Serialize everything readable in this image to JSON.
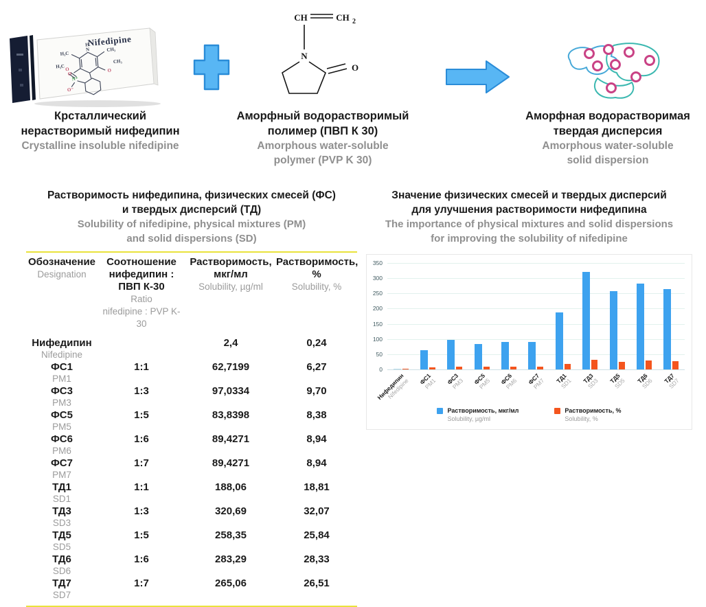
{
  "scheme": {
    "left": {
      "package_label": "Nifedipine",
      "caption_ru": [
        "Крсталлический",
        "нерастворимый нифедипин"
      ],
      "caption_en": [
        "Crystalline insoluble nifedipine"
      ],
      "structure_atoms": {
        "h": "H",
        "n": "N",
        "h3c": "H₃C",
        "ch3": "CH₃",
        "o": "O",
        "n_plus": "N⁺",
        "o_minus": "O⁻"
      }
    },
    "plus_icon": "plus",
    "arrow_icon": "right-arrow",
    "middle": {
      "caption_ru": [
        "Аморфный водорастворимый",
        "полимер (ПВП К 30)"
      ],
      "caption_en": [
        "Amorphous water-soluble",
        "polymer (PVP K 30)"
      ],
      "structure_atoms": {
        "ch": "CH",
        "ch2": "CH",
        "ch2_sub": "2",
        "n": "N",
        "o": "O"
      }
    },
    "right": {
      "caption_ru": [
        "Аморфная водорастворимая",
        "твердая дисперсия"
      ],
      "caption_en": [
        "Amorphous water-soluble",
        "solid dispersion"
      ]
    }
  },
  "table": {
    "title_ru": [
      "Растворимость нифедипина, физических смесей (ФС)",
      "и твердых дисперсий (ТД)"
    ],
    "title_en": [
      "Solubility of nifedipine, physical mixtures (PM)",
      "and solid dispersions (SD)"
    ],
    "headers": {
      "designation": {
        "ru": "Обозначение",
        "en": "Designation"
      },
      "ratio": {
        "ru1": "Соотношение",
        "ru2": "нифедипин : ПВП К-30",
        "en1": "Ratio",
        "en2": "nifedipine : PVP K-30"
      },
      "solubility": {
        "ru1": "Растворимость,",
        "ru2": "мкг/мл",
        "en": "Solubility, µg/ml"
      },
      "solubility_pct": {
        "ru": "Растворимость, %",
        "en": "Solubility, %"
      }
    },
    "rows": [
      {
        "ru": "Нифедипин",
        "en": "Nifedipine",
        "ratio": "",
        "sol": "2,4",
        "pct": "0,24"
      },
      {
        "ru": "ФС1",
        "en": "PM1",
        "ratio": "1:1",
        "sol": "62,7199",
        "pct": "6,27"
      },
      {
        "ru": "ФС3",
        "en": "PM3",
        "ratio": "1:3",
        "sol": "97,0334",
        "pct": "9,70"
      },
      {
        "ru": "ФС5",
        "en": "PM5",
        "ratio": "1:5",
        "sol": "83,8398",
        "pct": "8,38"
      },
      {
        "ru": "ФС6",
        "en": "PM6",
        "ratio": "1:6",
        "sol": "89,4271",
        "pct": "8,94"
      },
      {
        "ru": "ФС7",
        "en": "PM7",
        "ratio": "1:7",
        "sol": "89,4271",
        "pct": "8,94"
      },
      {
        "ru": "ТД1",
        "en": "SD1",
        "ratio": "1:1",
        "sol": "188,06",
        "pct": "18,81"
      },
      {
        "ru": "ТД3",
        "en": "SD3",
        "ratio": "1:3",
        "sol": "320,69",
        "pct": "32,07"
      },
      {
        "ru": "ТД5",
        "en": "SD5",
        "ratio": "1:5",
        "sol": "258,35",
        "pct": "25,84"
      },
      {
        "ru": "ТД6",
        "en": "SD6",
        "ratio": "1:6",
        "sol": "283,29",
        "pct": "28,33"
      },
      {
        "ru": "ТД7",
        "en": "SD7",
        "ratio": "1:7",
        "sol": "265,06",
        "pct": "26,51"
      }
    ]
  },
  "chart": {
    "title_ru": [
      "Значение физических смесей и твердых дисперсий",
      "для улучшения растворимости нифедипина"
    ],
    "title_en": [
      "The importance of physical mixtures and solid dispersions",
      "for improving the solubility of nifedipine"
    ]
  },
  "chart_data": {
    "type": "bar",
    "categories": [
      {
        "ru": "Нифедипин",
        "en": "Nifedipine"
      },
      {
        "ru": "ФС1",
        "en": "PM1"
      },
      {
        "ru": "ФС3",
        "en": "PM3"
      },
      {
        "ru": "ФС5",
        "en": "PM5"
      },
      {
        "ru": "ФС6",
        "en": "PM6"
      },
      {
        "ru": "ФС7",
        "en": "PM7"
      },
      {
        "ru": "ТД1",
        "en": "SD1"
      },
      {
        "ru": "ТД3",
        "en": "SD3"
      },
      {
        "ru": "ТД5",
        "en": "SD5"
      },
      {
        "ru": "ТД6",
        "en": "SD6"
      },
      {
        "ru": "ТД7",
        "en": "SD7"
      }
    ],
    "series": [
      {
        "name_ru": "Растворимость, мкг/мл",
        "name_en": "Solubility, µg/ml",
        "color": "#3da2ef",
        "first_bar_color": "#b9dcec",
        "values": [
          2.4,
          62.7199,
          97.0334,
          83.8398,
          89.4271,
          89.4271,
          188.06,
          320.69,
          258.35,
          283.29,
          265.06
        ]
      },
      {
        "name_ru": "Растворимость, %",
        "name_en": "Solubility, %",
        "color": "#f4551e",
        "values": [
          0.24,
          6.27,
          9.7,
          8.38,
          8.94,
          8.94,
          18.81,
          32.07,
          25.84,
          28.33,
          26.51
        ]
      }
    ],
    "ylim": [
      0,
      350
    ],
    "yticks": [
      0,
      50,
      100,
      150,
      200,
      250,
      300,
      350
    ],
    "grid": true,
    "legend_position": "bottom-inside"
  },
  "colors": {
    "accent_blue_fill": "#58b6f4",
    "accent_blue_stroke": "#2a8cd8",
    "table_rule_yellow": "#e9e23b",
    "bar_blue": "#3da2ef",
    "bar_blue_pale": "#b9dcec",
    "bar_orange": "#f4551e",
    "dispersion_teal": "#3bb8b0",
    "dispersion_pink": "#c94285"
  }
}
